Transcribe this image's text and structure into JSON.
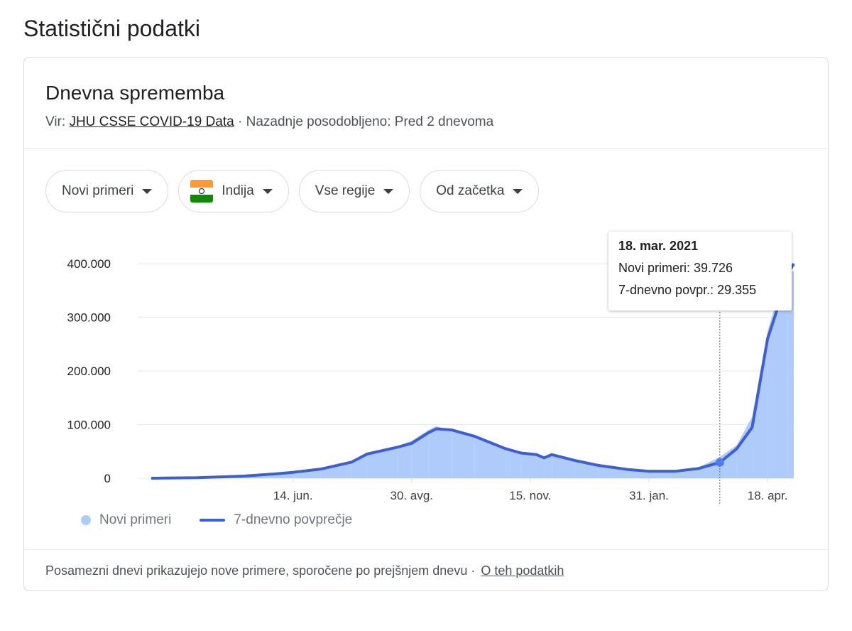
{
  "page_title": "Statistični podatki",
  "card": {
    "title": "Dnevna sprememba",
    "source_prefix": "Vir: ",
    "source_link": "JHU CSSE COVID-19 Data",
    "updated": " · Nazadnje posodobljeno: Pred 2 dnevoma",
    "filters": [
      "Novi primeri",
      "Indija",
      "Vse regije",
      "Od začetka"
    ],
    "footer_text": "Posamezni dnevi prikazujejo nove primere, sporočene po prejšnjem dnevu  ·",
    "footer_link": "O teh podatkih"
  },
  "tooltip": {
    "date": "18. mar. 2021",
    "new_cases": "Novi primeri: 39.726",
    "avg": "7-dnevno povpr.: 29.355"
  },
  "colors": {
    "bars": "#aecbfa",
    "line": "#3c5fd6",
    "dot": "#4f7cf0"
  },
  "chart_data": {
    "type": "bar",
    "x_unit": "days since start of series",
    "xtick_labels": [
      {
        "day": 92,
        "label": "14. jun."
      },
      {
        "day": 169,
        "label": "30. avg."
      },
      {
        "day": 246,
        "label": "15. nov."
      },
      {
        "day": 323,
        "label": "31. jan."
      },
      {
        "day": 400,
        "label": "18. apr."
      }
    ],
    "ytick_labels": [
      "0",
      "100.000",
      "200.000",
      "300.000",
      "400.000"
    ],
    "yticks": [
      0,
      100000,
      200000,
      300000,
      400000
    ],
    "ylim": [
      0,
      400000
    ],
    "xlim": [
      0,
      417
    ],
    "highlight_day": 369,
    "legend": [
      "Novi primeri",
      "7-dnevno povprečje"
    ],
    "series": [
      {
        "name": "7-dnevno povprečje",
        "points": [
          [
            0,
            0
          ],
          [
            30,
            1000
          ],
          [
            60,
            4000
          ],
          [
            80,
            8000
          ],
          [
            92,
            11000
          ],
          [
            110,
            17000
          ],
          [
            130,
            30000
          ],
          [
            140,
            45000
          ],
          [
            160,
            58000
          ],
          [
            169,
            65000
          ],
          [
            180,
            85000
          ],
          [
            185,
            92000
          ],
          [
            195,
            90000
          ],
          [
            210,
            78000
          ],
          [
            230,
            55000
          ],
          [
            240,
            47000
          ],
          [
            250,
            44000
          ],
          [
            255,
            38000
          ],
          [
            260,
            44000
          ],
          [
            275,
            33000
          ],
          [
            290,
            24000
          ],
          [
            300,
            20000
          ],
          [
            310,
            16000
          ],
          [
            323,
            13000
          ],
          [
            340,
            13000
          ],
          [
            355,
            18000
          ],
          [
            369,
            29355
          ],
          [
            380,
            55000
          ],
          [
            390,
            95000
          ],
          [
            400,
            260000
          ],
          [
            408,
            330000
          ],
          [
            413,
            380000
          ],
          [
            417,
            400000
          ]
        ]
      },
      {
        "name": "Novi primeri",
        "points": [
          [
            0,
            0
          ],
          [
            30,
            1200
          ],
          [
            60,
            4500
          ],
          [
            80,
            9000
          ],
          [
            92,
            12000
          ],
          [
            110,
            18000
          ],
          [
            130,
            32000
          ],
          [
            140,
            48000
          ],
          [
            160,
            60000
          ],
          [
            169,
            70000
          ],
          [
            180,
            90000
          ],
          [
            185,
            97000
          ],
          [
            195,
            88000
          ],
          [
            210,
            76000
          ],
          [
            230,
            53000
          ],
          [
            240,
            46000
          ],
          [
            250,
            42000
          ],
          [
            255,
            36000
          ],
          [
            260,
            46000
          ],
          [
            275,
            31000
          ],
          [
            290,
            22000
          ],
          [
            300,
            18000
          ],
          [
            310,
            15000
          ],
          [
            323,
            12000
          ],
          [
            340,
            14000
          ],
          [
            355,
            20000
          ],
          [
            369,
            39726
          ],
          [
            380,
            62000
          ],
          [
            390,
            115000
          ],
          [
            400,
            275000
          ],
          [
            408,
            350000
          ],
          [
            413,
            390000
          ],
          [
            417,
            385000
          ]
        ]
      }
    ]
  }
}
